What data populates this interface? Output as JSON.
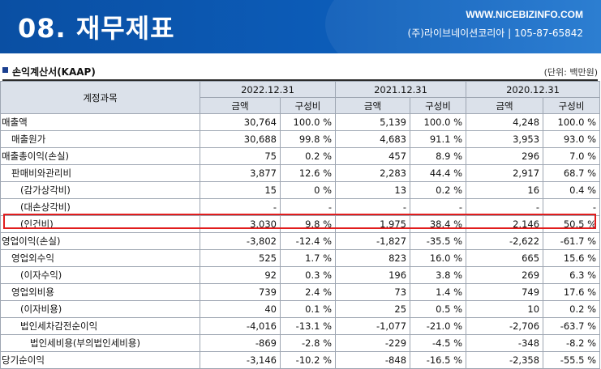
{
  "banner": {
    "title": "08. 재무제표",
    "site": "WWW.NICEBIZINFO.COM",
    "company": "(주)라이브네이션코리아 | 105-87-65842"
  },
  "section": {
    "title": "손익계산서(KAAP)",
    "unit": "(단위: 백만원)"
  },
  "table": {
    "account_header": "계정과목",
    "periods": [
      "2022.12.31",
      "2021.12.31",
      "2020.12.31"
    ],
    "sub_headers": [
      "금액",
      "구성비"
    ],
    "rows": [
      {
        "account": "매출액",
        "indent": 0,
        "values": [
          "30,764",
          "100.0 %",
          "5,139",
          "100.0 %",
          "4,248",
          "100.0 %"
        ]
      },
      {
        "account": "매출원가",
        "indent": 1,
        "values": [
          "30,688",
          "99.8 %",
          "4,683",
          "91.1 %",
          "3,953",
          "93.0 %"
        ]
      },
      {
        "account": "매출총이익(손실)",
        "indent": 0,
        "values": [
          "75",
          "0.2 %",
          "457",
          "8.9 %",
          "296",
          "7.0 %"
        ]
      },
      {
        "account": "판매비와관리비",
        "indent": 1,
        "values": [
          "3,877",
          "12.6 %",
          "2,283",
          "44.4 %",
          "2,917",
          "68.7 %"
        ]
      },
      {
        "account": "(감가상각비)",
        "indent": 2,
        "values": [
          "15",
          "0 %",
          "13",
          "0.2 %",
          "16",
          "0.4 %"
        ]
      },
      {
        "account": "(대손상각비)",
        "indent": 2,
        "values": [
          "-",
          "-",
          "-",
          "-",
          "-",
          "-"
        ]
      },
      {
        "account": "(인건비)",
        "indent": 2,
        "values": [
          "3,030",
          "9.8 %",
          "1,975",
          "38.4 %",
          "2,146",
          "50.5 %"
        ]
      },
      {
        "account": "영업이익(손실)",
        "indent": 0,
        "values": [
          "-3,802",
          "-12.4 %",
          "-1,827",
          "-35.5 %",
          "-2,622",
          "-61.7 %"
        ]
      },
      {
        "account": "영업외수익",
        "indent": 1,
        "values": [
          "525",
          "1.7 %",
          "823",
          "16.0 %",
          "665",
          "15.6 %"
        ]
      },
      {
        "account": "(이자수익)",
        "indent": 2,
        "values": [
          "92",
          "0.3 %",
          "196",
          "3.8 %",
          "269",
          "6.3 %"
        ]
      },
      {
        "account": "영업외비용",
        "indent": 1,
        "values": [
          "739",
          "2.4 %",
          "73",
          "1.4 %",
          "749",
          "17.6 %"
        ]
      },
      {
        "account": "(이자비용)",
        "indent": 2,
        "values": [
          "40",
          "0.1 %",
          "25",
          "0.5 %",
          "10",
          "0.2 %"
        ]
      },
      {
        "account": "법인세차감전순이익",
        "indent": 2,
        "values": [
          "-4,016",
          "-13.1 %",
          "-1,077",
          "-21.0 %",
          "-2,706",
          "-63.7 %"
        ]
      },
      {
        "account": "법인세비용(부의법인세비용)",
        "indent": 3,
        "values": [
          "-869",
          "-2.8 %",
          "-229",
          "-4.5 %",
          "-348",
          "-8.2 %"
        ]
      },
      {
        "account": "당기순이익",
        "indent": 0,
        "values": [
          "-3,146",
          "-10.2 %",
          "-848",
          "-16.5 %",
          "-2,358",
          "-55.5 %"
        ]
      }
    ]
  }
}
